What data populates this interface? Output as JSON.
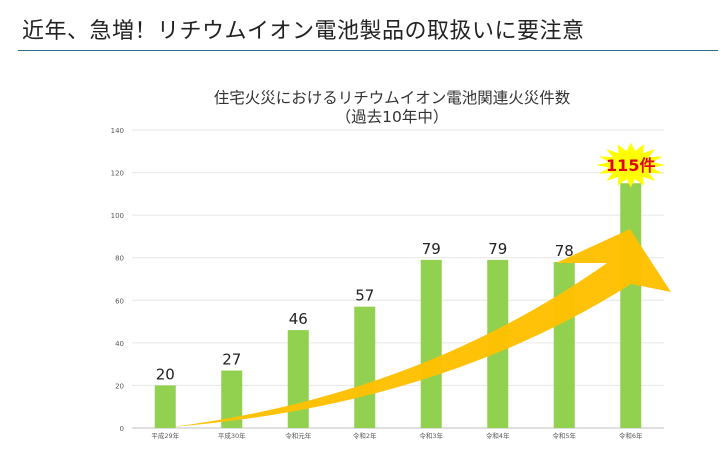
{
  "page": {
    "title": "近年、急増！リチウムイオン電池製品の取扱いに要注意"
  },
  "colors": {
    "bar": "#92d050",
    "arrow": "#ffc000",
    "burst": "#ffff00",
    "burst_text": "#e2001a",
    "rule": "#2f6f8f",
    "grid": "#e6e6e6",
    "axis_text": "#595959"
  },
  "chart_data": {
    "type": "bar",
    "title": "住宅火災におけるリチウムイオン電池関連火災件数",
    "subtitle": "（過去10年中）",
    "categories": [
      "平成29年",
      "平成30年",
      "令和元年",
      "令和2年",
      "令和3年",
      "令和4年",
      "令和5年",
      "令和6年"
    ],
    "values": [
      20,
      27,
      46,
      57,
      79,
      79,
      78,
      115
    ],
    "ylim": [
      0,
      140
    ],
    "yticks": [
      0,
      20,
      40,
      60,
      80,
      100,
      120,
      140
    ],
    "xlabel": "",
    "ylabel": "",
    "grid": true,
    "highlight": {
      "category_index": 7,
      "label": "115件"
    },
    "trend_arrow": "upward"
  }
}
